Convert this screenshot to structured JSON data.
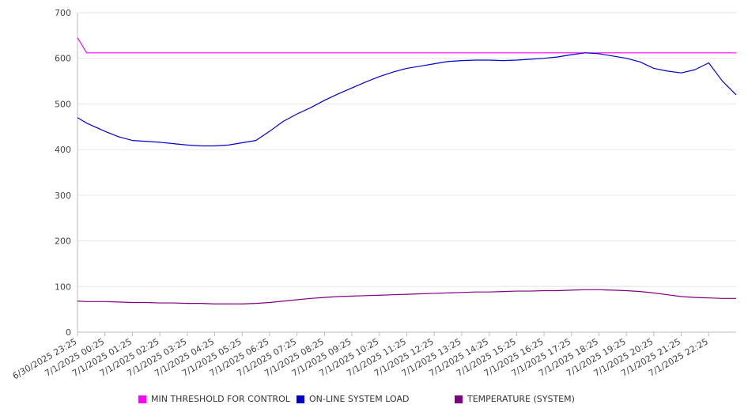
{
  "chart_data": {
    "type": "line",
    "title": "",
    "xlabel": "",
    "ylabel": "",
    "ylim": [
      0,
      700
    ],
    "yticks": [
      0,
      100,
      200,
      300,
      400,
      500,
      600,
      700
    ],
    "grid": true,
    "legend_position": "bottom",
    "xtick_labels": [
      "6/30/2025 23:25",
      "7/1/2025 00:25",
      "7/1/2025 01:25",
      "7/1/2025 02:25",
      "7/1/2025 03:25",
      "7/1/2025 04:25",
      "7/1/2025 05:25",
      "7/1/2025 06:25",
      "7/1/2025 07:25",
      "7/1/2025 08:25",
      "7/1/2025 09:25",
      "7/1/2025 10:25",
      "7/1/2025 11:25",
      "7/1/2025 12:25",
      "7/1/2025 13:25",
      "7/1/2025 14:25",
      "7/1/2025 15:25",
      "7/1/2025 16:25",
      "7/1/2025 17:25",
      "7/1/2025 18:25",
      "7/1/2025 19:25",
      "7/1/2025 20:25",
      "7/1/2025 21:25",
      "7/1/2025 22:25"
    ],
    "x": [
      "6/30/2025 23:25",
      "6/30/2025 23:45",
      "7/1/2025 00:25",
      "7/1/2025 00:55",
      "7/1/2025 01:25",
      "7/1/2025 01:55",
      "7/1/2025 02:25",
      "7/1/2025 02:55",
      "7/1/2025 03:25",
      "7/1/2025 03:55",
      "7/1/2025 04:25",
      "7/1/2025 04:55",
      "7/1/2025 05:25",
      "7/1/2025 05:55",
      "7/1/2025 06:25",
      "7/1/2025 06:55",
      "7/1/2025 07:25",
      "7/1/2025 07:55",
      "7/1/2025 08:25",
      "7/1/2025 08:55",
      "7/1/2025 09:25",
      "7/1/2025 09:55",
      "7/1/2025 10:25",
      "7/1/2025 10:55",
      "7/1/2025 11:25",
      "7/1/2025 11:55",
      "7/1/2025 12:25",
      "7/1/2025 12:55",
      "7/1/2025 13:25",
      "7/1/2025 13:55",
      "7/1/2025 14:25",
      "7/1/2025 14:55",
      "7/1/2025 15:25",
      "7/1/2025 15:55",
      "7/1/2025 16:25",
      "7/1/2025 16:55",
      "7/1/2025 17:25",
      "7/1/2025 17:55",
      "7/1/2025 18:25",
      "7/1/2025 18:55",
      "7/1/2025 19:25",
      "7/1/2025 19:55",
      "7/1/2025 20:25",
      "7/1/2025 20:55",
      "7/1/2025 21:25",
      "7/1/2025 21:55",
      "7/1/2025 22:25",
      "7/1/2025 22:55",
      "7/1/2025 23:25"
    ],
    "series": [
      {
        "name": "MIN THRESHOLD FOR CONTROL",
        "color": "#ff00ff",
        "values": [
          645,
          612,
          612,
          612,
          612,
          612,
          612,
          612,
          612,
          612,
          612,
          612,
          612,
          612,
          612,
          612,
          612,
          612,
          612,
          612,
          612,
          612,
          612,
          612,
          612,
          612,
          612,
          612,
          612,
          612,
          612,
          612,
          612,
          612,
          612,
          612,
          612,
          612,
          612,
          612,
          612,
          612,
          612,
          612,
          612,
          612,
          612,
          612,
          612
        ]
      },
      {
        "name": "ON-LINE SYSTEM LOAD",
        "color": "#0000cc",
        "values": [
          470,
          458,
          440,
          428,
          420,
          418,
          416,
          413,
          410,
          408,
          408,
          410,
          415,
          420,
          440,
          462,
          478,
          492,
          508,
          522,
          535,
          548,
          560,
          570,
          578,
          583,
          588,
          593,
          595,
          596,
          596,
          595,
          596,
          598,
          600,
          603,
          608,
          612,
          610,
          605,
          600,
          592,
          578,
          572,
          568,
          575,
          590,
          550,
          520
        ]
      },
      {
        "name": "TEMPERATURE (SYSTEM)",
        "color": "#800080",
        "values": [
          68,
          67,
          67,
          66,
          65,
          65,
          64,
          64,
          63,
          63,
          62,
          62,
          62,
          63,
          65,
          68,
          71,
          74,
          76,
          78,
          79,
          80,
          81,
          82,
          83,
          84,
          85,
          86,
          87,
          88,
          88,
          89,
          90,
          90,
          91,
          91,
          92,
          93,
          93,
          92,
          91,
          89,
          86,
          82,
          78,
          76,
          75,
          74,
          74
        ]
      }
    ]
  }
}
